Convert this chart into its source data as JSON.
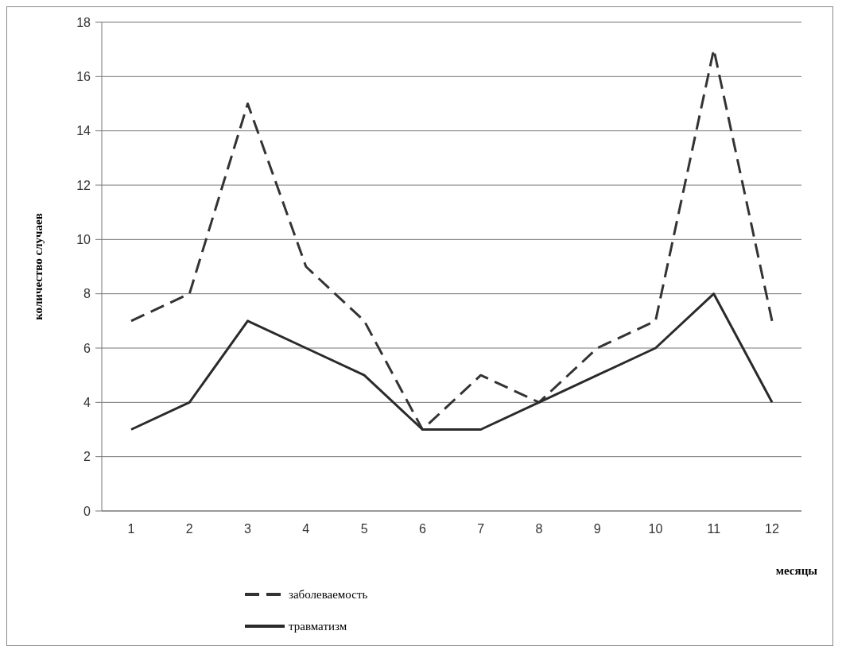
{
  "chart_data": {
    "type": "line",
    "xlabel": "месяцы",
    "ylabel": "количество случаев",
    "categories": [
      "1",
      "2",
      "3",
      "4",
      "5",
      "6",
      "7",
      "8",
      "9",
      "10",
      "11",
      "12"
    ],
    "series": [
      {
        "name": "заболеваемость",
        "color": "#333333",
        "line_style": "dashed",
        "values": [
          7,
          8,
          15,
          9,
          7,
          3,
          5,
          4,
          6,
          7,
          17,
          7
        ]
      },
      {
        "name": "травматизм",
        "color": "#2a2a2a",
        "line_style": "solid",
        "values": [
          3,
          4,
          7,
          6,
          5,
          3,
          3,
          4,
          5,
          6,
          8,
          4
        ]
      }
    ],
    "ylim": [
      0,
      18
    ],
    "yticks": [
      0,
      2,
      4,
      6,
      8,
      10,
      12,
      14,
      16,
      18
    ],
    "grid": "y",
    "legend": "bottom",
    "marker": "none"
  }
}
